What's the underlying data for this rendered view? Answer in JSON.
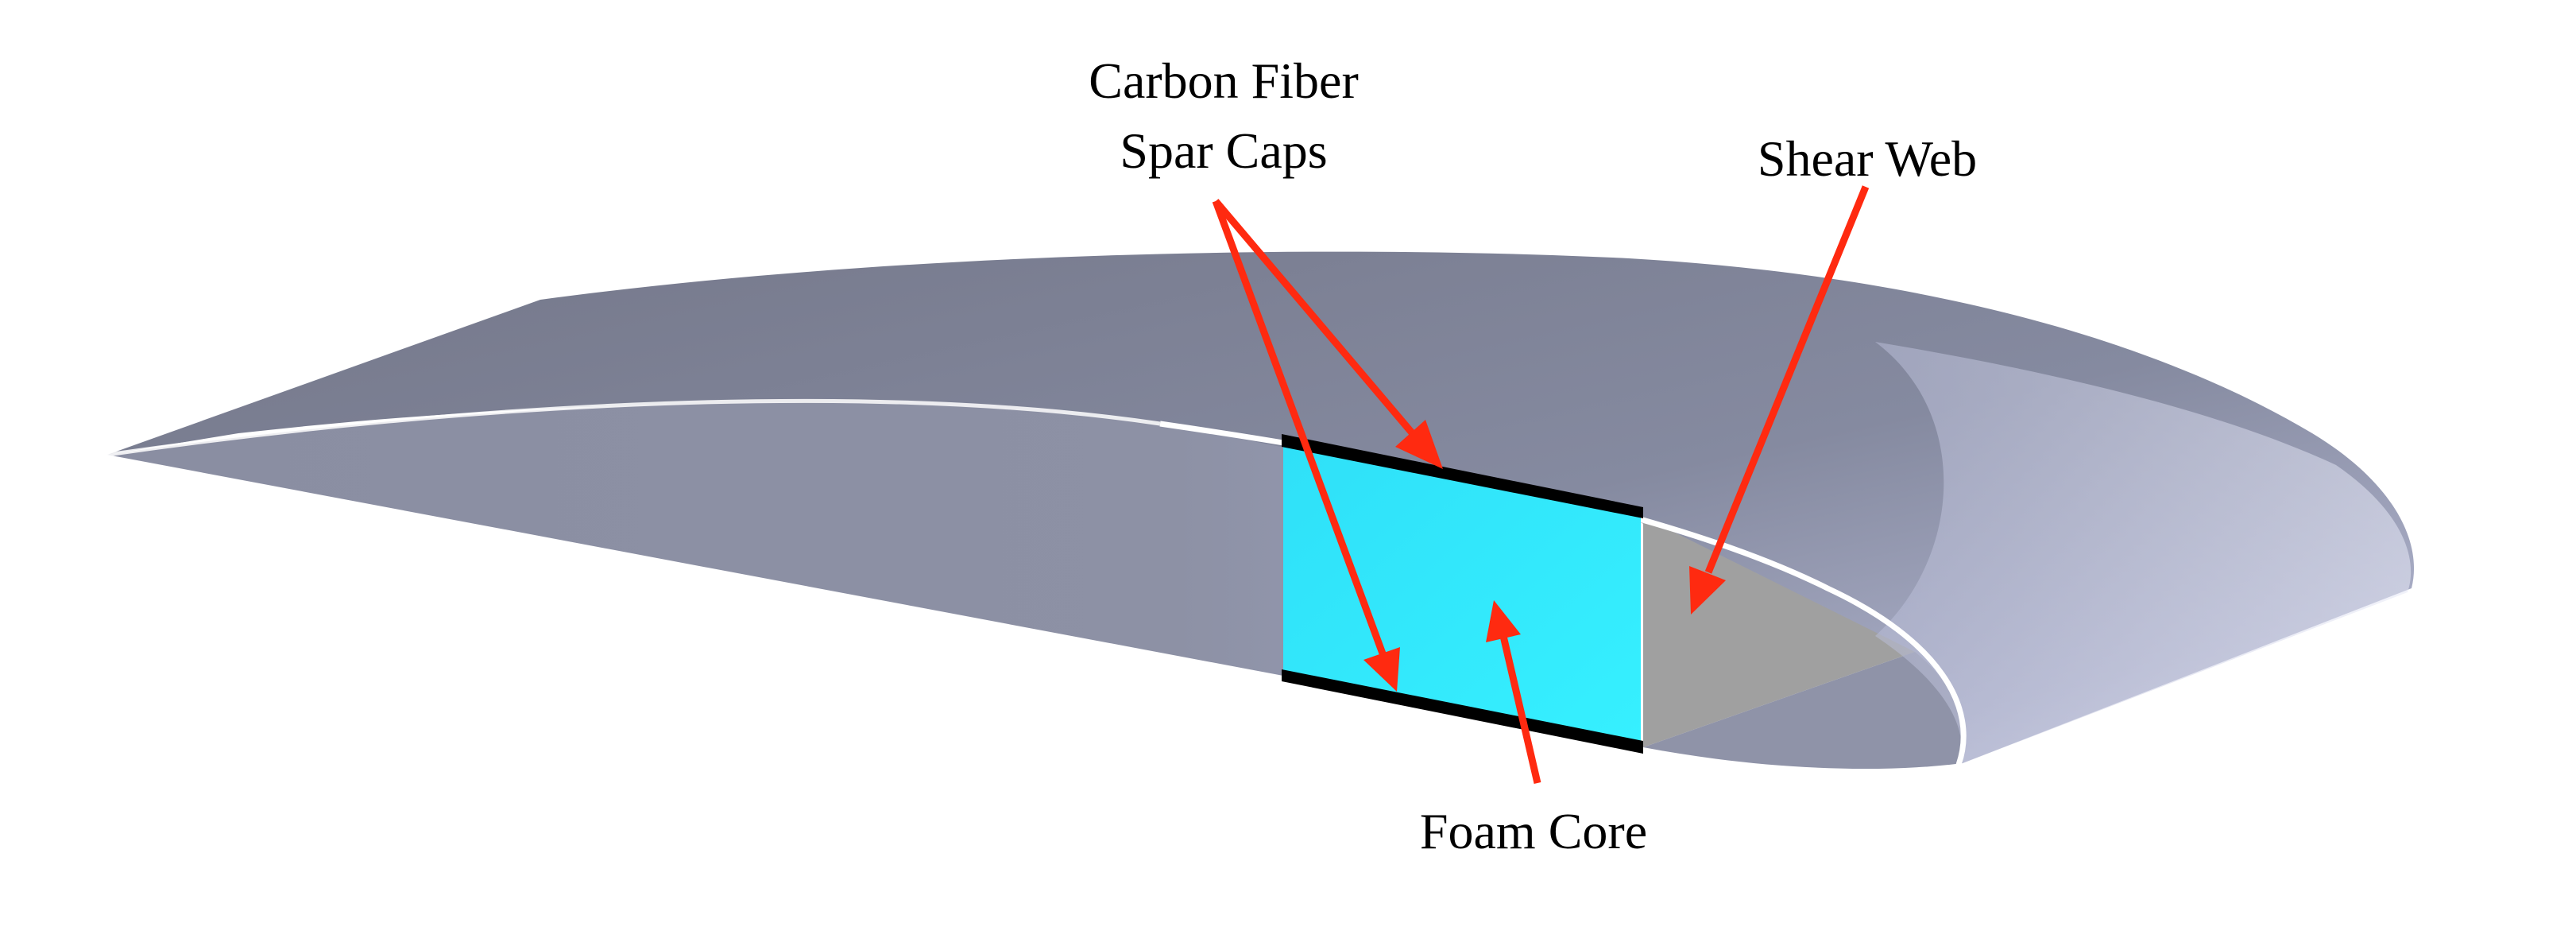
{
  "labels": {
    "spar_caps_line1": "Carbon Fiber",
    "spar_caps_line2": "Spar Caps",
    "shear_web": "Shear Web",
    "foam_core": "Foam Core"
  },
  "colors": {
    "background": "#ffffff",
    "wing_skin": "#7f8396",
    "foam_core": "#33e6fa",
    "shear_web": "#a0a0a0",
    "spar_cap": "#000000",
    "arrow": "#ff2a10"
  }
}
